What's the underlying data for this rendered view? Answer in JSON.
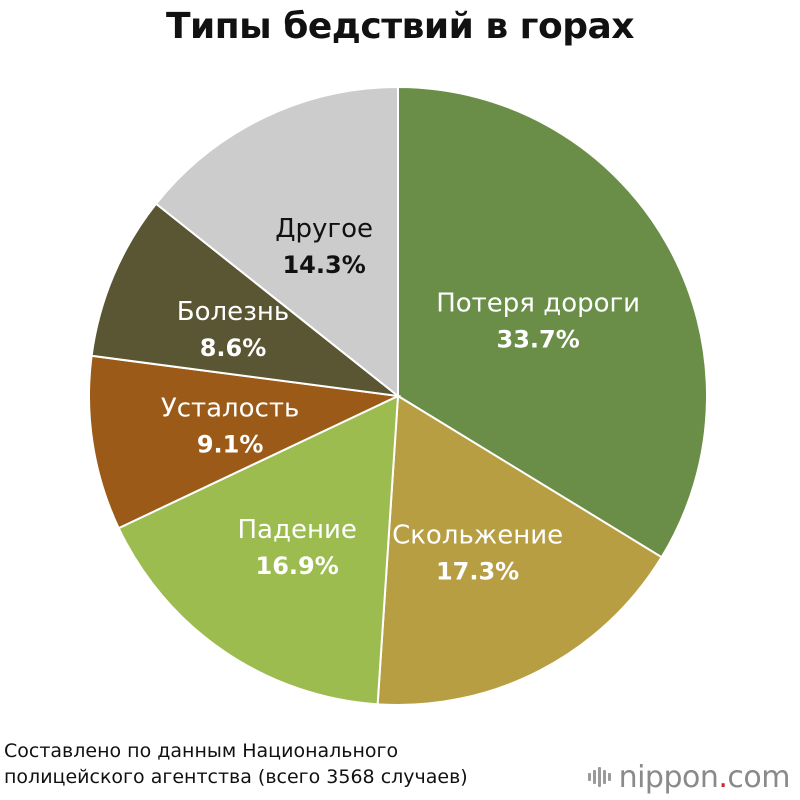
{
  "chart_data": {
    "type": "pie",
    "title": "Типы бедствий в горах",
    "slices": [
      {
        "label": "Потеря дороги",
        "value": 33.7,
        "display": "33.7%",
        "color": "#6a8e48",
        "label_color": "#ffffff"
      },
      {
        "label": "Скольжение",
        "value": 17.3,
        "display": "17.3%",
        "color": "#b89e42",
        "label_color": "#ffffff"
      },
      {
        "label": "Падение",
        "value": 16.9,
        "display": "16.9%",
        "color": "#9cbc50",
        "label_color": "#ffffff"
      },
      {
        "label": "Усталость",
        "value": 9.1,
        "display": "9.1%",
        "color": "#9b5a17",
        "label_color": "#ffffff"
      },
      {
        "label": "Болезнь",
        "value": 8.6,
        "display": "8.6%",
        "color": "#5a5533",
        "label_color": "#ffffff"
      },
      {
        "label": "Другое",
        "value": 14.3,
        "display": "14.3%",
        "color": "#cccccc",
        "label_color": "#111111"
      }
    ],
    "start": "12 o'clock",
    "direction": "clockwise"
  },
  "source": {
    "line1": "Составлено по данным Национального",
    "line2": "полицейского агентства (всего 3568 случаев)"
  },
  "brand": {
    "name": "nippon",
    "dot": ".",
    "tld": "com"
  }
}
